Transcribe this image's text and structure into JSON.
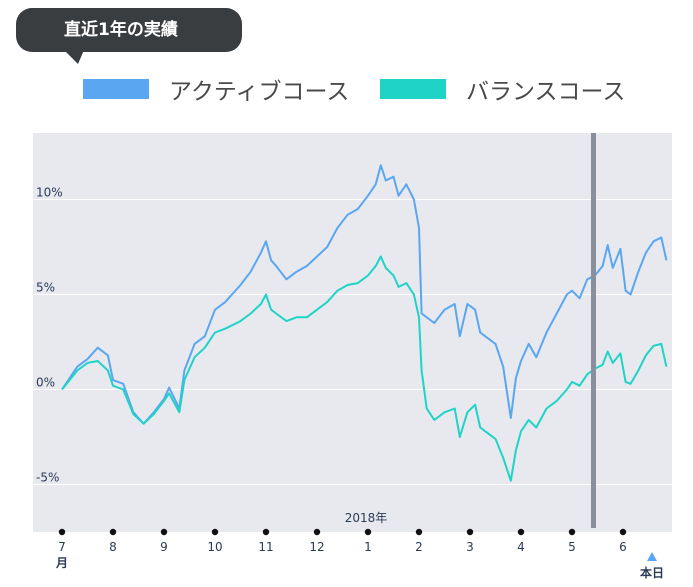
{
  "header": {
    "badge_label": "直近1年の実績"
  },
  "colors": {
    "active": "#5aa6f0",
    "balance": "#1fd3c6",
    "plot_bg": "#e8e9ef",
    "marker_line": "#8a8f9c",
    "axis_text": "#2b3a55"
  },
  "chart_data": {
    "type": "line",
    "y_unit": "%",
    "ylim": [
      -7.5,
      13.5
    ],
    "yticks": [
      {
        "value": 10,
        "label": "10%"
      },
      {
        "value": 5,
        "label": "5%"
      },
      {
        "value": 0,
        "label": "0%"
      },
      {
        "value": -5,
        "label": "-5%"
      }
    ],
    "grid": true,
    "legend_position": "top",
    "year_label": "2018年",
    "months": [
      "7",
      "8",
      "9",
      "10",
      "11",
      "12",
      "1",
      "2",
      "3",
      "4",
      "5",
      "6"
    ],
    "month_unit": "月",
    "today_label": "本日",
    "series": [
      {
        "name": "アクティブコース",
        "color": "#5aa6f0",
        "points": [
          [
            0.0,
            0.0
          ],
          [
            0.3,
            1.2
          ],
          [
            0.5,
            1.6
          ],
          [
            0.7,
            2.2
          ],
          [
            0.9,
            1.8
          ],
          [
            1.0,
            0.5
          ],
          [
            1.2,
            0.3
          ],
          [
            1.4,
            -1.2
          ],
          [
            1.6,
            -1.8
          ],
          [
            1.8,
            -1.2
          ],
          [
            2.0,
            -0.5
          ],
          [
            2.1,
            0.1
          ],
          [
            2.3,
            -1.0
          ],
          [
            2.4,
            1.0
          ],
          [
            2.6,
            2.4
          ],
          [
            2.8,
            2.8
          ],
          [
            3.0,
            4.2
          ],
          [
            3.2,
            4.6
          ],
          [
            3.5,
            5.5
          ],
          [
            3.7,
            6.2
          ],
          [
            3.9,
            7.2
          ],
          [
            4.0,
            7.8
          ],
          [
            4.1,
            6.8
          ],
          [
            4.2,
            6.5
          ],
          [
            4.4,
            5.8
          ],
          [
            4.6,
            6.2
          ],
          [
            4.8,
            6.5
          ],
          [
            5.0,
            7.0
          ],
          [
            5.2,
            7.5
          ],
          [
            5.4,
            8.5
          ],
          [
            5.6,
            9.2
          ],
          [
            5.8,
            9.5
          ],
          [
            6.0,
            10.2
          ],
          [
            6.15,
            10.8
          ],
          [
            6.25,
            11.8
          ],
          [
            6.35,
            11.0
          ],
          [
            6.5,
            11.2
          ],
          [
            6.6,
            10.2
          ],
          [
            6.75,
            10.8
          ],
          [
            6.9,
            10.0
          ],
          [
            7.0,
            8.5
          ],
          [
            7.05,
            4.0
          ],
          [
            7.15,
            3.8
          ],
          [
            7.3,
            3.5
          ],
          [
            7.5,
            4.2
          ],
          [
            7.7,
            4.5
          ],
          [
            7.8,
            2.8
          ],
          [
            7.95,
            4.5
          ],
          [
            8.1,
            4.2
          ],
          [
            8.2,
            3.0
          ],
          [
            8.3,
            2.8
          ],
          [
            8.5,
            2.4
          ],
          [
            8.65,
            1.2
          ],
          [
            8.8,
            -1.5
          ],
          [
            8.9,
            0.6
          ],
          [
            9.0,
            1.5
          ],
          [
            9.15,
            2.4
          ],
          [
            9.3,
            1.7
          ],
          [
            9.5,
            3.0
          ],
          [
            9.7,
            4.0
          ],
          [
            9.9,
            5.0
          ],
          [
            10.0,
            5.2
          ],
          [
            10.15,
            4.8
          ],
          [
            10.3,
            5.8
          ],
          [
            10.45,
            6.0
          ],
          [
            10.6,
            6.5
          ],
          [
            10.7,
            7.6
          ],
          [
            10.8,
            6.4
          ],
          [
            10.95,
            7.4
          ],
          [
            11.05,
            5.2
          ],
          [
            11.15,
            5.0
          ],
          [
            11.3,
            6.2
          ],
          [
            11.45,
            7.2
          ],
          [
            11.6,
            7.8
          ],
          [
            11.75,
            8.0
          ],
          [
            11.85,
            6.8
          ]
        ]
      },
      {
        "name": "バランスコース",
        "color": "#1fd3c6",
        "points": [
          [
            0.0,
            0.0
          ],
          [
            0.3,
            1.0
          ],
          [
            0.5,
            1.4
          ],
          [
            0.7,
            1.5
          ],
          [
            0.9,
            1.0
          ],
          [
            1.0,
            0.2
          ],
          [
            1.2,
            0.0
          ],
          [
            1.4,
            -1.3
          ],
          [
            1.6,
            -1.8
          ],
          [
            1.8,
            -1.3
          ],
          [
            2.0,
            -0.6
          ],
          [
            2.1,
            -0.2
          ],
          [
            2.3,
            -1.2
          ],
          [
            2.4,
            0.5
          ],
          [
            2.6,
            1.7
          ],
          [
            2.8,
            2.2
          ],
          [
            3.0,
            3.0
          ],
          [
            3.2,
            3.2
          ],
          [
            3.5,
            3.6
          ],
          [
            3.7,
            4.0
          ],
          [
            3.9,
            4.5
          ],
          [
            4.0,
            5.0
          ],
          [
            4.1,
            4.2
          ],
          [
            4.2,
            4.0
          ],
          [
            4.4,
            3.6
          ],
          [
            4.6,
            3.8
          ],
          [
            4.8,
            3.8
          ],
          [
            5.0,
            4.2
          ],
          [
            5.2,
            4.6
          ],
          [
            5.4,
            5.2
          ],
          [
            5.6,
            5.5
          ],
          [
            5.8,
            5.6
          ],
          [
            6.0,
            6.0
          ],
          [
            6.15,
            6.5
          ],
          [
            6.25,
            7.0
          ],
          [
            6.35,
            6.4
          ],
          [
            6.5,
            6.0
          ],
          [
            6.6,
            5.4
          ],
          [
            6.75,
            5.6
          ],
          [
            6.9,
            5.0
          ],
          [
            7.0,
            3.8
          ],
          [
            7.05,
            1.0
          ],
          [
            7.15,
            -1.0
          ],
          [
            7.3,
            -1.6
          ],
          [
            7.5,
            -1.2
          ],
          [
            7.7,
            -1.0
          ],
          [
            7.8,
            -2.5
          ],
          [
            7.95,
            -1.2
          ],
          [
            8.1,
            -0.8
          ],
          [
            8.2,
            -2.0
          ],
          [
            8.3,
            -2.2
          ],
          [
            8.5,
            -2.6
          ],
          [
            8.65,
            -3.6
          ],
          [
            8.8,
            -4.8
          ],
          [
            8.9,
            -3.2
          ],
          [
            9.0,
            -2.2
          ],
          [
            9.15,
            -1.6
          ],
          [
            9.3,
            -2.0
          ],
          [
            9.5,
            -1.0
          ],
          [
            9.7,
            -0.6
          ],
          [
            9.9,
            0.0
          ],
          [
            10.0,
            0.4
          ],
          [
            10.15,
            0.2
          ],
          [
            10.3,
            0.8
          ],
          [
            10.45,
            1.1
          ],
          [
            10.6,
            1.3
          ],
          [
            10.7,
            2.0
          ],
          [
            10.8,
            1.4
          ],
          [
            10.95,
            1.9
          ],
          [
            11.05,
            0.4
          ],
          [
            11.15,
            0.3
          ],
          [
            11.3,
            1.0
          ],
          [
            11.45,
            1.8
          ],
          [
            11.6,
            2.3
          ],
          [
            11.75,
            2.4
          ],
          [
            11.85,
            1.2
          ]
        ]
      }
    ]
  }
}
